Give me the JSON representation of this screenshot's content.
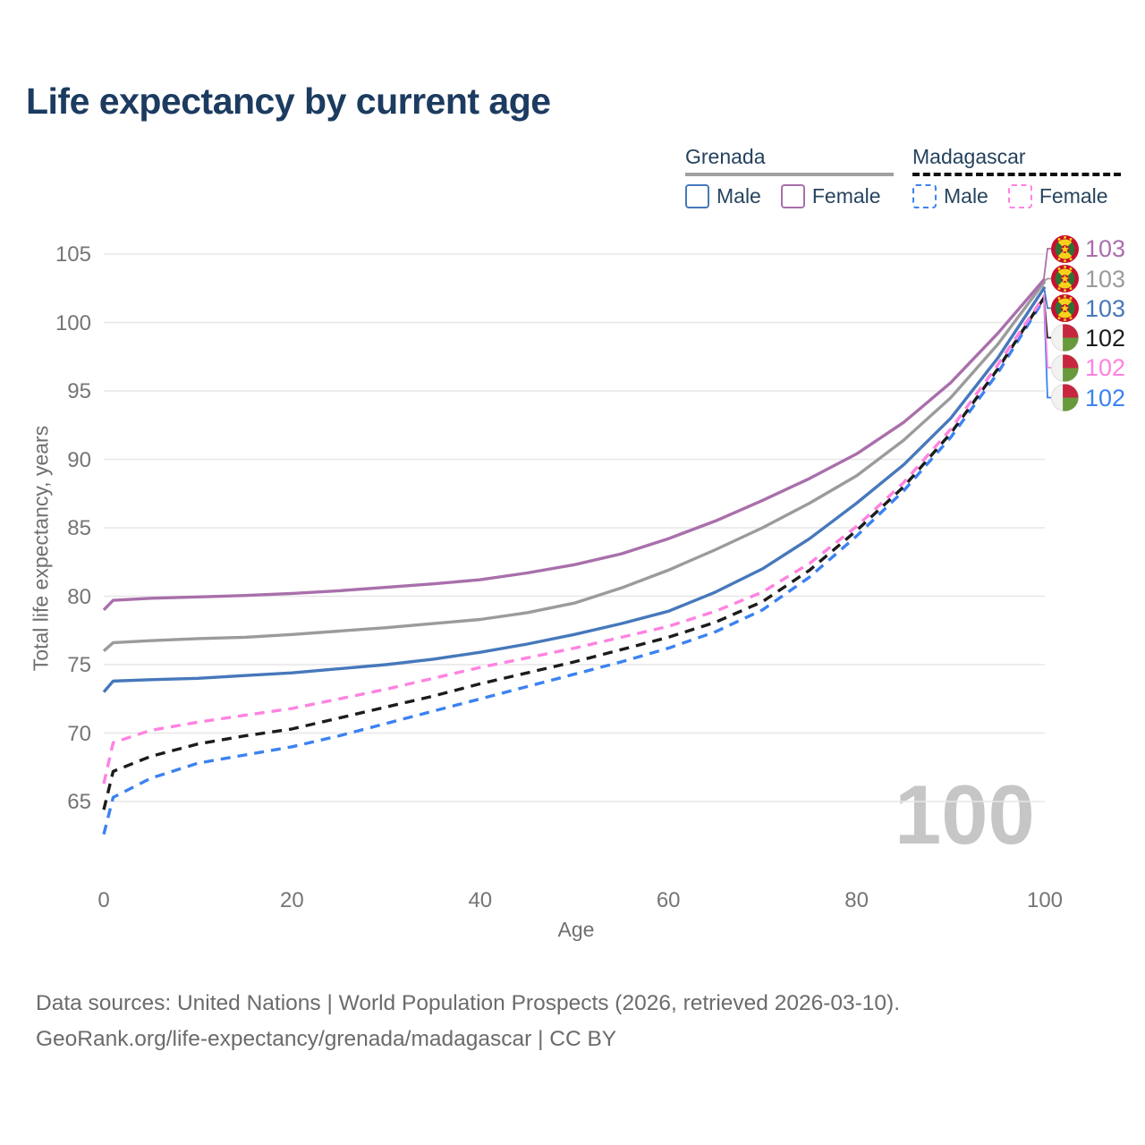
{
  "title": "Life expectancy by current age",
  "watermark": "100",
  "legend": {
    "groups": [
      {
        "country": "Grenada",
        "line_style": "solid",
        "underline_color": "#a0a0a0",
        "items": [
          {
            "label": "Male",
            "color": "#4678bb"
          },
          {
            "label": "Female",
            "color": "#a96fab"
          }
        ]
      },
      {
        "country": "Madagascar",
        "line_style": "dashed",
        "underline_color": "#111111",
        "items": [
          {
            "label": "Male",
            "color": "#3b82f2"
          },
          {
            "label": "Female",
            "color": "#ff82e0"
          }
        ]
      }
    ]
  },
  "chart_data": {
    "type": "line",
    "title": "Life expectancy by current age",
    "xlabel": "Age",
    "ylabel": "Total life expectancy, years",
    "x_ticks": [
      0,
      20,
      40,
      60,
      80,
      100
    ],
    "y_ticks": [
      65,
      70,
      75,
      80,
      85,
      90,
      95,
      100,
      105
    ],
    "xlim": [
      0,
      100
    ],
    "ylim": [
      62,
      105.5
    ],
    "grid": "horizontal",
    "legend_position": "top-right",
    "ages": [
      0,
      1,
      5,
      10,
      15,
      20,
      25,
      30,
      35,
      40,
      45,
      50,
      55,
      60,
      65,
      70,
      75,
      80,
      85,
      90,
      95,
      100
    ],
    "series": [
      {
        "name": "Madagascar Male",
        "country": "Madagascar",
        "sex": "male",
        "color": "#3b82f2",
        "dashed": true,
        "values": [
          62.6,
          65.3,
          66.7,
          67.8,
          68.4,
          69.0,
          69.8,
          70.7,
          71.6,
          72.5,
          73.4,
          74.3,
          75.2,
          76.2,
          77.4,
          79.0,
          81.4,
          84.4,
          87.7,
          91.6,
          96.3,
          101.8
        ],
        "end_label": "102",
        "flag": "madagascar",
        "end_row": 5
      },
      {
        "name": "Madagascar Total",
        "country": "Madagascar",
        "sex": "both",
        "color": "#1c1c1c",
        "dashed": true,
        "values": [
          64.4,
          67.2,
          68.3,
          69.2,
          69.8,
          70.3,
          71.1,
          71.9,
          72.7,
          73.6,
          74.4,
          75.2,
          76.1,
          77.0,
          78.1,
          79.6,
          81.9,
          84.8,
          88.0,
          91.9,
          96.6,
          101.9
        ],
        "end_label": "102",
        "flag": "madagascar",
        "end_row": 3
      },
      {
        "name": "Madagascar Female",
        "country": "Madagascar",
        "sex": "female",
        "color": "#ff82e0",
        "dashed": true,
        "values": [
          66.3,
          69.3,
          70.2,
          70.8,
          71.3,
          71.8,
          72.5,
          73.2,
          74.0,
          74.8,
          75.5,
          76.2,
          77.0,
          77.8,
          78.9,
          80.3,
          82.4,
          85.1,
          88.3,
          92.2,
          96.9,
          102.0
        ],
        "end_label": "102",
        "flag": "madagascar",
        "end_row": 4
      },
      {
        "name": "Grenada Male",
        "country": "Grenada",
        "sex": "male",
        "color": "#4678bb",
        "dashed": false,
        "values": [
          73.0,
          73.8,
          73.9,
          74.0,
          74.2,
          74.4,
          74.7,
          75.0,
          75.4,
          75.9,
          76.5,
          77.2,
          78.0,
          78.9,
          80.3,
          82.0,
          84.2,
          86.8,
          89.6,
          93.0,
          97.4,
          102.6
        ],
        "end_label": "103",
        "flag": "grenada",
        "end_row": 2
      },
      {
        "name": "Grenada Total",
        "country": "Grenada",
        "sex": "both",
        "color": "#9b9b9b",
        "dashed": false,
        "values": [
          76.0,
          76.6,
          76.75,
          76.9,
          77.0,
          77.2,
          77.45,
          77.7,
          78.0,
          78.3,
          78.8,
          79.5,
          80.6,
          81.9,
          83.4,
          85.0,
          86.8,
          88.8,
          91.4,
          94.5,
          98.4,
          103.0
        ],
        "end_label": "103",
        "flag": "grenada",
        "end_row": 1
      },
      {
        "name": "Grenada Female",
        "country": "Grenada",
        "sex": "female",
        "color": "#a96fab",
        "dashed": false,
        "values": [
          79.0,
          79.7,
          79.85,
          79.95,
          80.05,
          80.2,
          80.4,
          80.65,
          80.9,
          81.2,
          81.7,
          82.3,
          83.1,
          84.2,
          85.5,
          87.0,
          88.6,
          90.4,
          92.7,
          95.6,
          99.2,
          103.2
        ],
        "end_label": "103",
        "flag": "grenada",
        "end_row": 0
      }
    ]
  },
  "footer": {
    "line1": "Data sources: United Nations | World Population Prospects (2026, retrieved 2026-03-10).",
    "line2": "GeoRank.org/life-expectancy/grenada/madagascar | CC BY"
  },
  "colors": {
    "title": "#1c3b60",
    "axis_text": "#757575",
    "gridline": "#e7e7e7",
    "watermark": "#c6c6c6",
    "flag_grenada": {
      "red": "#c8102e",
      "yellow": "#f8d21a",
      "green": "#2f7037"
    },
    "flag_madagascar": {
      "white": "#f2f2f0",
      "red": "#c6263e",
      "green": "#69993d"
    }
  }
}
